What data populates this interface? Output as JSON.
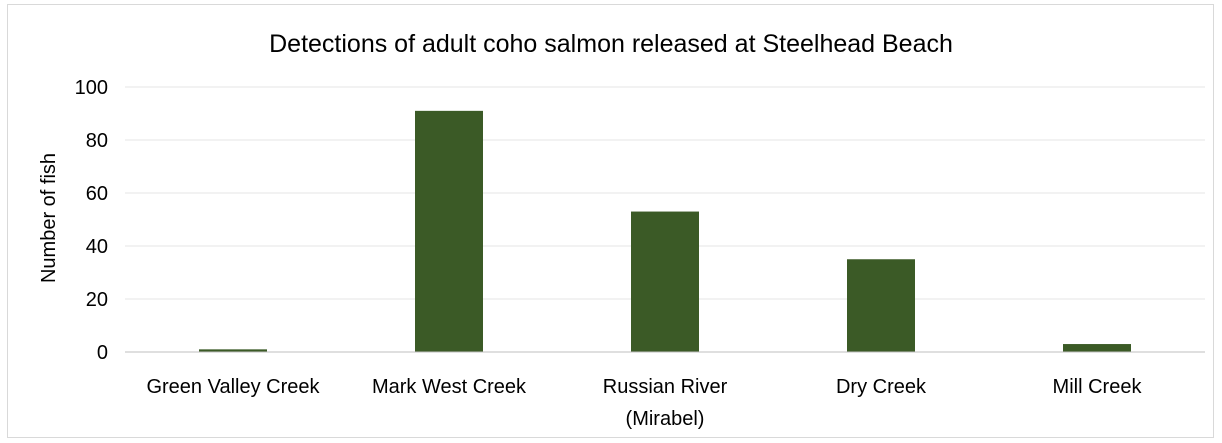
{
  "chart_data": {
    "type": "bar",
    "title": "Detections of adult coho salmon released at Steelhead Beach",
    "xlabel": "",
    "ylabel": "Number of fish",
    "categories": [
      [
        "Green Valley Creek"
      ],
      [
        "Mark West Creek"
      ],
      [
        "Russian River",
        "(Mirabel)"
      ],
      [
        "Dry Creek"
      ],
      [
        "Mill Creek"
      ]
    ],
    "values": [
      1,
      91,
      53,
      35,
      3
    ],
    "ylim": [
      0,
      100
    ],
    "yticks": [
      0,
      20,
      40,
      60,
      80,
      100
    ],
    "grid": true,
    "legend": "none",
    "colors": {
      "bar": "#3b5a26",
      "grid": "#e6e6e6",
      "axis": "#bfbfbf",
      "frame": "#d9d9d9"
    }
  }
}
